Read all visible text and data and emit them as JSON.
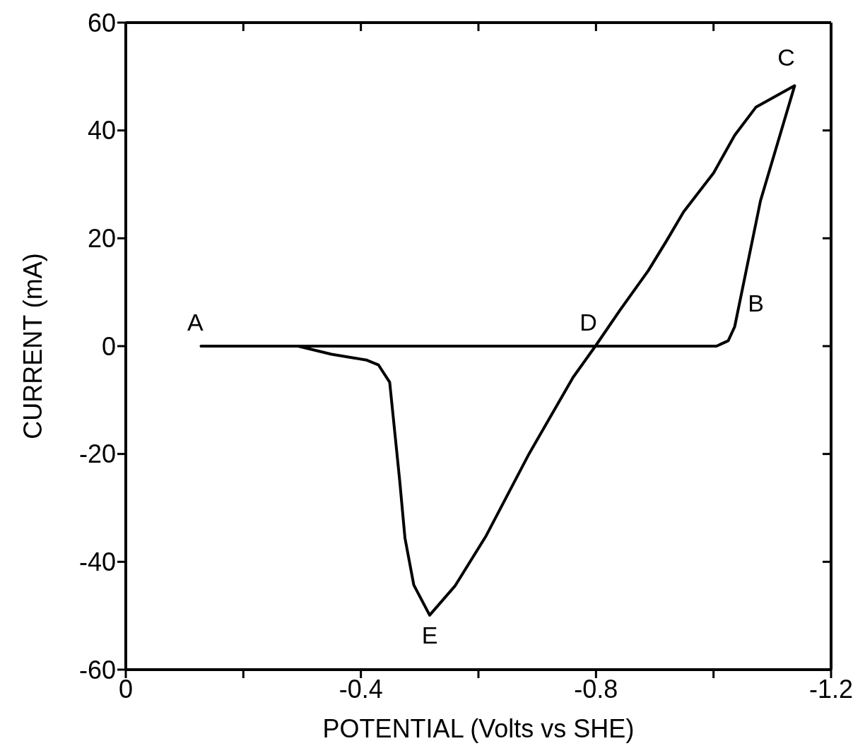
{
  "chart_data": {
    "type": "line",
    "xlabel": "POTENTIAL  (Volts  vs  SHE)",
    "ylabel": "CURRENT  (mA)",
    "xlim": [
      0,
      -1.2
    ],
    "xticks": [
      0,
      {
        "value": -0.2,
        "label": null
      },
      -0.4,
      {
        "value": -0.6,
        "label": null
      },
      -0.8,
      {
        "value": -1.0,
        "label": null
      },
      -1.2
    ],
    "ylim": [
      -60,
      60
    ],
    "yticks": [
      -60,
      -40,
      -20,
      0,
      20,
      40,
      60
    ],
    "marker": "none",
    "line_style": "solid",
    "series": [
      {
        "color": "#000000",
        "x": [
          -0.128,
          -0.5,
          -1.005,
          -1.025,
          -1.036,
          -1.08,
          -1.138,
          -1.072,
          -1.036,
          -1.0,
          -0.949,
          -0.921,
          -0.889,
          -0.841,
          -0.799,
          -0.761,
          -0.686,
          -0.613,
          -0.56,
          -0.517,
          -0.49,
          -0.475,
          -0.466,
          -0.449,
          -0.43,
          -0.41,
          -0.35,
          -0.293
        ],
        "values": [
          0,
          0,
          0,
          1,
          3.6,
          27,
          48.3,
          44.3,
          39.1,
          32.1,
          24.9,
          19.7,
          14,
          6.7,
          0,
          -5.8,
          -20,
          -35.2,
          -44.5,
          -49.9,
          -44.3,
          -35.6,
          -24.9,
          -6.7,
          -3.5,
          -2.6,
          -1.5,
          0
        ]
      }
    ],
    "annotations": [
      {
        "text": "A",
        "x": -0.128,
        "y": 0
      },
      {
        "text": "B",
        "x": -1.036,
        "y": 3.6
      },
      {
        "text": "C",
        "x": -1.138,
        "y": 48.3
      },
      {
        "text": "D",
        "x": -0.799,
        "y": 0
      },
      {
        "text": "E",
        "x": -0.517,
        "y": -49.9
      }
    ]
  }
}
